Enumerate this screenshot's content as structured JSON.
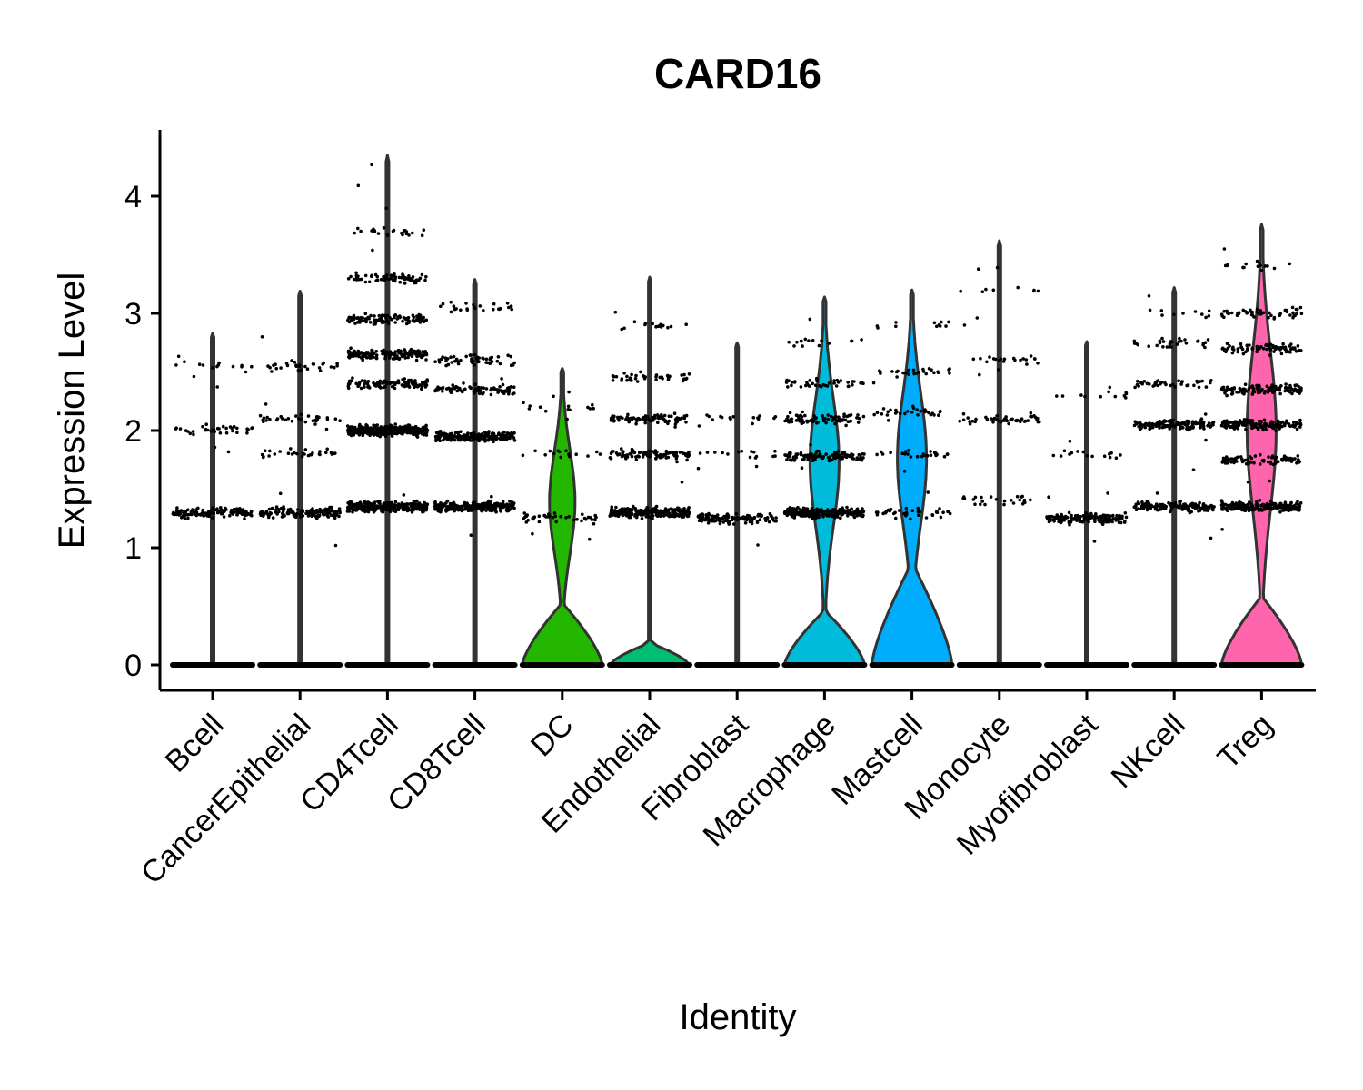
{
  "chart_data": {
    "type": "violin",
    "title": "CARD16",
    "xlabel": "Identity",
    "ylabel": "Expression Level",
    "ylim": [
      -0.2,
      4.55
    ],
    "yticks": [
      0,
      1,
      2,
      3,
      4
    ],
    "categories": [
      "Bcell",
      "CancerEpithelial",
      "CD4Tcell",
      "CD8Tcell",
      "DC",
      "Endothelial",
      "Fibroblast",
      "Macrophage",
      "Mastcell",
      "Monocyte",
      "Myofibroblast",
      "NKcell",
      "Treg"
    ],
    "colors": [
      "#F8766D",
      "#E18A00",
      "#BE9C00",
      "#8CAB00",
      "#24B700",
      "#00BE70",
      "#00C1AB",
      "#00BBDA",
      "#00ACFC",
      "#8B93FF",
      "#D575FE",
      "#F962DD",
      "#FF65AC"
    ],
    "max_expression": [
      2.83,
      3.19,
      4.35,
      3.29,
      2.53,
      3.31,
      2.75,
      3.14,
      3.2,
      3.62,
      2.76,
      3.22,
      3.76
    ],
    "violin_bulb_top": [
      0,
      0,
      0,
      0,
      0.27,
      0.1,
      0,
      0.24,
      0.43,
      0,
      0,
      0,
      0.3
    ],
    "violin_upper_body": [
      false,
      false,
      false,
      false,
      true,
      false,
      false,
      true,
      true,
      false,
      false,
      false,
      true
    ],
    "expression_bands": [
      [
        [
          1.3,
          130
        ],
        [
          2.0,
          35
        ],
        [
          2.55,
          12
        ]
      ],
      [
        [
          1.3,
          140
        ],
        [
          1.8,
          30
        ],
        [
          2.1,
          35
        ],
        [
          2.55,
          30
        ]
      ],
      [
        [
          1.35,
          330
        ],
        [
          2.0,
          380
        ],
        [
          2.4,
          120
        ],
        [
          2.65,
          150
        ],
        [
          2.95,
          110
        ],
        [
          3.3,
          70
        ],
        [
          3.7,
          25
        ]
      ],
      [
        [
          1.35,
          280
        ],
        [
          1.95,
          220
        ],
        [
          2.35,
          80
        ],
        [
          2.6,
          50
        ],
        [
          3.05,
          25
        ]
      ],
      [
        [
          1.25,
          40
        ],
        [
          1.8,
          15
        ],
        [
          2.2,
          12
        ]
      ],
      [
        [
          1.3,
          280
        ],
        [
          1.8,
          90
        ],
        [
          2.1,
          90
        ],
        [
          2.45,
          40
        ],
        [
          2.9,
          15
        ]
      ],
      [
        [
          1.25,
          120
        ],
        [
          1.8,
          15
        ],
        [
          2.1,
          15
        ]
      ],
      [
        [
          1.3,
          260
        ],
        [
          1.78,
          120
        ],
        [
          2.1,
          80
        ],
        [
          2.4,
          40
        ],
        [
          2.75,
          15
        ]
      ],
      [
        [
          1.3,
          40
        ],
        [
          1.8,
          25
        ],
        [
          2.15,
          30
        ],
        [
          2.5,
          25
        ],
        [
          2.9,
          10
        ]
      ],
      [
        [
          1.4,
          25
        ],
        [
          2.1,
          50
        ],
        [
          2.6,
          20
        ],
        [
          3.2,
          8
        ]
      ],
      [
        [
          1.25,
          150
        ],
        [
          1.8,
          15
        ],
        [
          2.3,
          10
        ]
      ],
      [
        [
          1.35,
          150
        ],
        [
          2.05,
          150
        ],
        [
          2.4,
          40
        ],
        [
          2.75,
          30
        ],
        [
          3.0,
          10
        ]
      ],
      [
        [
          1.35,
          220
        ],
        [
          1.75,
          90
        ],
        [
          2.05,
          150
        ],
        [
          2.35,
          120
        ],
        [
          2.7,
          80
        ],
        [
          3.0,
          50
        ],
        [
          3.4,
          15
        ]
      ]
    ]
  }
}
